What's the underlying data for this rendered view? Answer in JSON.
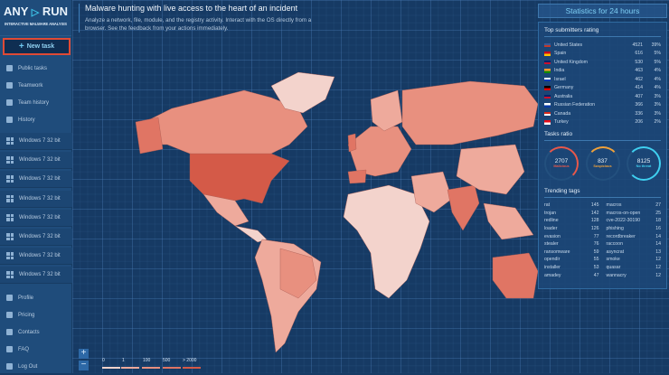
{
  "logo": {
    "left": "ANY",
    "right": "RUN",
    "subtitle": "INTERACTIVE MALWARE ANALYSIS"
  },
  "sidebar": {
    "new_task": "New task",
    "items": [
      {
        "label": "Public tasks",
        "icon": "file-icon"
      },
      {
        "label": "Teamwork",
        "icon": "team-icon"
      },
      {
        "label": "Team history",
        "icon": "team-history-icon"
      },
      {
        "label": "History",
        "icon": "history-icon"
      }
    ],
    "windows": [
      "Windows 7 32 bit",
      "Windows 7 32 bit",
      "Windows 7 32 bit",
      "Windows 7 32 bit",
      "Windows 7 32 bit",
      "Windows 7 32 bit",
      "Windows 7 32 bit",
      "Windows 7 32 bit"
    ],
    "bottom": [
      {
        "label": "Profile",
        "icon": "profile-icon"
      },
      {
        "label": "Pricing",
        "icon": "cart-icon"
      },
      {
        "label": "Contacts",
        "icon": "mail-icon"
      },
      {
        "label": "FAQ",
        "icon": "help-icon"
      },
      {
        "label": "Log Out",
        "icon": "logout-icon"
      }
    ]
  },
  "header": {
    "title": "Malware hunting with live access to the heart of an incident",
    "description": "Analyze a network, file, module, and the registry activity. Interact with the OS directly from a browser. See the feedback from your actions immediately."
  },
  "map": {
    "zoom_in": "+",
    "zoom_out": "−",
    "legend": [
      {
        "label": "0",
        "color": "#f3d3cc"
      },
      {
        "label": "1",
        "color": "#eeaa9c"
      },
      {
        "label": "100",
        "color": "#e8907f"
      },
      {
        "label": "500",
        "color": "#e07564"
      },
      {
        "label": "> 2000",
        "color": "#d45a48"
      }
    ]
  },
  "stats": {
    "title": "Statistics for 24 hours",
    "submitters_title": "Top submitters rating",
    "submitters": [
      {
        "country": "United States",
        "count": "4521",
        "pct": "39%"
      },
      {
        "country": "Spain",
        "count": "616",
        "pct": "5%"
      },
      {
        "country": "United Kingdom",
        "count": "530",
        "pct": "5%"
      },
      {
        "country": "India",
        "count": "463",
        "pct": "4%"
      },
      {
        "country": "Israel",
        "count": "462",
        "pct": "4%"
      },
      {
        "country": "Germany",
        "count": "414",
        "pct": "4%"
      },
      {
        "country": "Australia",
        "count": "407",
        "pct": "3%"
      },
      {
        "country": "Russian Federation",
        "count": "366",
        "pct": "3%"
      },
      {
        "country": "Canada",
        "count": "336",
        "pct": "3%"
      },
      {
        "country": "Turkey",
        "count": "206",
        "pct": "2%"
      }
    ],
    "ratio_title": "Tasks ratio",
    "ratio": [
      {
        "value": "2707",
        "label": "Malicious",
        "color": "#e8584a"
      },
      {
        "value": "837",
        "label": "Suspicious",
        "color": "#f0a23a"
      },
      {
        "value": "8125",
        "label": "No threat",
        "color": "#3fd0f0"
      }
    ],
    "tags_title": "Trending tags",
    "tags": [
      {
        "name": "rat",
        "count": "145"
      },
      {
        "name": "macros",
        "count": "27"
      },
      {
        "name": "trojan",
        "count": "142"
      },
      {
        "name": "macros-on-open",
        "count": "25"
      },
      {
        "name": "redline",
        "count": "128"
      },
      {
        "name": "cve-2022-30190",
        "count": "18"
      },
      {
        "name": "loader",
        "count": "126"
      },
      {
        "name": "phishing",
        "count": "16"
      },
      {
        "name": "evasion",
        "count": "77"
      },
      {
        "name": "recordbreaker",
        "count": "14"
      },
      {
        "name": "stealer",
        "count": "76"
      },
      {
        "name": "raccoon",
        "count": "14"
      },
      {
        "name": "ransomware",
        "count": "59"
      },
      {
        "name": "asyncrat",
        "count": "13"
      },
      {
        "name": "opendir",
        "count": "55"
      },
      {
        "name": "smoke",
        "count": "12"
      },
      {
        "name": "installer",
        "count": "53"
      },
      {
        "name": "quasar",
        "count": "12"
      },
      {
        "name": "amadey",
        "count": "47"
      },
      {
        "name": "wannacry",
        "count": "12"
      }
    ]
  }
}
